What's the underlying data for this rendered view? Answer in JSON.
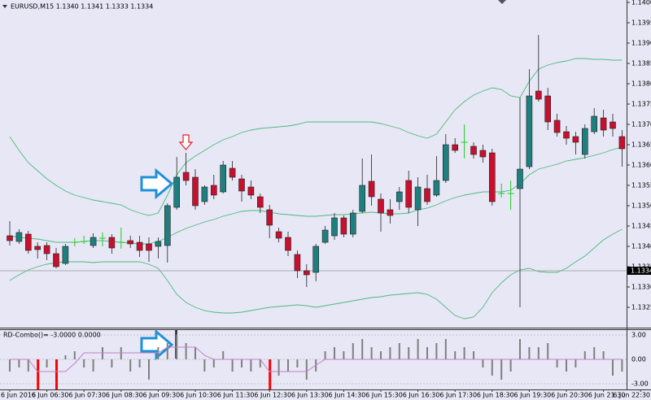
{
  "chart_data": [
    {
      "type": "candlestick",
      "title": "EURUSD,M15  1.1340 1.1341 1.1333 1.1334",
      "ylim": [
        1.132,
        1.14006
      ],
      "yticks": [
        {
          "value": 1.14,
          "label": "1.1400"
        },
        1.1395,
        {
          "value": 1.139,
          "label": "1.1390"
        },
        1.1385,
        {
          "value": 1.138,
          "label": "1.1380"
        },
        1.1375,
        {
          "value": 1.137,
          "label": "1.1370"
        },
        1.1365,
        {
          "value": 1.136,
          "label": "1.1360"
        },
        1.1355,
        {
          "value": 1.135,
          "label": "1.1350"
        },
        1.1345,
        {
          "value": 1.134,
          "label": "1.1340"
        },
        1.1335,
        {
          "value": 1.133,
          "label": "1.1330"
        },
        1.1325
      ],
      "last_price": 1.1334,
      "colors": {
        "up": "#1f7e7e",
        "down": "#c8102e",
        "doji": "#22cc22",
        "band": "#4cbb78",
        "last_price": "#9a9a9a"
      },
      "open": [
        1.13426,
        1.13412,
        1.1343,
        1.134,
        1.13402,
        1.13382,
        1.13358,
        1.1341,
        1.13412,
        1.13402,
        1.1342,
        1.13422,
        1.1341,
        1.13414,
        1.1341,
        1.13406,
        1.134,
        1.13402,
        1.13496,
        1.13582,
        1.1357,
        1.1351,
        1.1355,
        1.13534,
        1.13592,
        1.13566,
        1.13546,
        1.13522,
        1.1349,
        1.13436,
        1.13422,
        1.1338,
        1.1334,
        1.13336,
        1.1341,
        1.13426,
        1.1347,
        1.1343,
        1.13486,
        1.1356,
        1.13516,
        1.1349,
        1.1351,
        1.13562,
        1.1349,
        1.13542,
        1.13526,
        1.13562,
        1.1365,
        1.13656,
        1.13646,
        1.13636,
        1.1363,
        1.1353,
        1.1353,
        1.13542,
        1.13596,
        1.13782,
        1.1377,
        1.1371,
        1.13682,
        1.1367,
        1.13626,
        1.13682,
        1.13716,
        1.13706,
        1.1367,
        null,
        null
      ],
      "high": [
        1.13462,
        1.13442,
        1.13438,
        1.1341,
        1.1341,
        1.13396,
        1.13406,
        1.1342,
        1.13426,
        1.13432,
        1.13434,
        1.1343,
        1.13446,
        1.13426,
        1.13426,
        1.13422,
        1.13422,
        1.13506,
        1.1362,
        1.1363,
        1.1359,
        1.1355,
        1.13576,
        1.1361,
        1.1361,
        1.13576,
        1.13562,
        1.1353,
        1.13502,
        1.13446,
        1.13436,
        1.1339,
        1.13356,
        1.13406,
        1.1345,
        1.13482,
        1.13476,
        1.1349,
        1.13616,
        1.13626,
        1.1353,
        1.13516,
        1.13546,
        1.13586,
        1.1357,
        1.13576,
        1.13622,
        1.13676,
        1.13666,
        1.137,
        1.13656,
        1.1365,
        1.1364,
        1.13554,
        1.13562,
        1.13766,
        1.13836,
        1.1392,
        1.1379,
        1.13726,
        1.13696,
        1.13682,
        1.137,
        1.1374,
        1.13736,
        1.13726,
        1.13686,
        null,
        null
      ],
      "low": [
        1.13402,
        1.13406,
        1.13382,
        1.1337,
        1.13366,
        1.13346,
        1.13354,
        1.134,
        1.13406,
        1.13396,
        1.134,
        1.13382,
        1.13394,
        1.13396,
        1.13374,
        1.13362,
        1.1337,
        1.1336,
        1.1349,
        1.1355,
        1.1349,
        1.13502,
        1.13516,
        1.1353,
        1.13562,
        1.1351,
        1.13516,
        1.13482,
        1.1342,
        1.1341,
        1.13376,
        1.13322,
        1.133,
        1.13314,
        1.13406,
        1.13416,
        1.13422,
        1.13422,
        1.13482,
        1.135,
        1.13436,
        1.13456,
        1.1349,
        1.13482,
        1.1345,
        1.13502,
        1.13522,
        1.13556,
        1.1363,
        1.13616,
        1.13616,
        1.13606,
        1.135,
        1.1352,
        1.1349,
        1.1325,
        1.1359,
        1.13756,
        1.13686,
        1.1367,
        1.1365,
        1.13626,
        1.13616,
        1.13676,
        1.1367,
        1.1367,
        1.13596,
        null,
        null
      ],
      "close": [
        1.13414,
        1.13434,
        1.1339,
        1.13392,
        1.13382,
        1.1335,
        1.134,
        1.1341,
        1.13412,
        1.13422,
        1.1342,
        1.13396,
        1.1341,
        1.13406,
        1.1339,
        1.1339,
        1.13412,
        1.135,
        1.1357,
        1.13562,
        1.135,
        1.13546,
        1.13526,
        1.136,
        1.1357,
        1.13536,
        1.13526,
        1.13496,
        1.13452,
        1.1342,
        1.1339,
        1.1334,
        1.1333,
        1.134,
        1.1344,
        1.1347,
        1.1343,
        1.13482,
        1.1355,
        1.13522,
        1.13482,
        1.13476,
        1.13534,
        1.13496,
        1.13546,
        1.1351,
        1.13562,
        1.1365,
        1.13636,
        1.13656,
        1.13626,
        1.1362,
        1.1351,
        1.1353,
        1.1353,
        1.1359,
        1.1377,
        1.13762,
        1.13706,
        1.1368,
        1.13666,
        1.13656,
        1.1369,
        1.1372,
        1.13686,
        1.1369,
        1.1364,
        null,
        null
      ],
      "upper_band": [
        1.1367,
        1.13636,
        1.13606,
        1.13586,
        1.13566,
        1.1355,
        1.13536,
        1.13526,
        1.1352,
        1.13514,
        1.1351,
        1.13506,
        1.13502,
        1.1349,
        1.13482,
        1.13476,
        1.13482,
        1.13526,
        1.13576,
        1.13606,
        1.13622,
        1.13636,
        1.1365,
        1.13662,
        1.1367,
        1.1368,
        1.13686,
        1.1369,
        1.13692,
        1.13694,
        1.13696,
        1.137,
        1.13706,
        1.13706,
        1.13706,
        1.13706,
        1.13706,
        1.13706,
        1.13706,
        1.13706,
        1.13702,
        1.13696,
        1.1369,
        1.1368,
        1.13672,
        1.13666,
        1.13676,
        1.13706,
        1.13736,
        1.13756,
        1.13772,
        1.13782,
        1.1379,
        1.13786,
        1.1377,
        1.13766,
        1.13806,
        1.13836,
        1.13846,
        1.13852,
        1.13856,
        1.13862,
        1.13862,
        1.1386,
        1.1386,
        1.13858,
        1.13858,
        null,
        null
      ],
      "middle_band": [
        1.13426,
        1.13422,
        1.1342,
        1.13418,
        1.13414,
        1.1341,
        1.1341,
        1.1341,
        1.13412,
        1.13414,
        1.13414,
        1.13412,
        1.1341,
        1.13408,
        1.13406,
        1.13406,
        1.13412,
        1.13422,
        1.13434,
        1.13444,
        1.13452,
        1.1346,
        1.13466,
        1.13474,
        1.1348,
        1.13486,
        1.13488,
        1.13488,
        1.13484,
        1.1348,
        1.13478,
        1.13476,
        1.13474,
        1.13474,
        1.13476,
        1.13478,
        1.13478,
        1.1348,
        1.13482,
        1.13484,
        1.13482,
        1.1348,
        1.1348,
        1.13482,
        1.1349,
        1.13494,
        1.13502,
        1.13512,
        1.1352,
        1.13526,
        1.1353,
        1.13534,
        1.13534,
        1.13534,
        1.13538,
        1.13554,
        1.13576,
        1.1359,
        1.13596,
        1.13602,
        1.1361,
        1.13614,
        1.13618,
        1.13624,
        1.1363,
        1.13638,
        1.13644,
        null,
        null
      ],
      "lower_band": [
        1.13316,
        1.1333,
        1.13342,
        1.1335,
        1.13356,
        1.1336,
        1.13362,
        1.13362,
        1.13362,
        1.1336,
        1.13362,
        1.13362,
        1.13362,
        1.13362,
        1.13362,
        1.13356,
        1.13346,
        1.13316,
        1.13282,
        1.13262,
        1.1325,
        1.13242,
        1.13238,
        1.13236,
        1.13236,
        1.13238,
        1.13242,
        1.13246,
        1.1325,
        1.13252,
        1.13254,
        1.13256,
        1.13254,
        1.1325,
        1.13254,
        1.13258,
        1.13262,
        1.13266,
        1.1327,
        1.13274,
        1.13276,
        1.1328,
        1.13282,
        1.13284,
        1.13286,
        1.13282,
        1.1327,
        1.1325,
        1.1323,
        1.13222,
        1.13226,
        1.1325,
        1.13286,
        1.1331,
        1.1333,
        1.13342,
        1.13346,
        1.13338,
        1.13336,
        1.13336,
        1.13346,
        1.13362,
        1.13376,
        1.13396,
        1.13416,
        1.1343,
        1.13442,
        null,
        null
      ]
    },
    {
      "type": "bar",
      "title": "RD-Combo()= -3.0000 0.0000",
      "ylim": [
        -3.7,
        3.6
      ],
      "yticks": [
        {
          "value": 3,
          "label": "3.00"
        },
        {
          "value": 0,
          "label": "0.00"
        },
        {
          "value": -3,
          "label": "-3.00"
        }
      ],
      "categories": [
        "6 Jun 2016",
        null,
        null,
        null,
        "6 Jun 06:30",
        null,
        null,
        null,
        "6 Jun 07:30",
        null,
        null,
        null,
        "6 Jun 08:30",
        null,
        null,
        null,
        "6 Jun 09:30",
        null,
        null,
        null,
        "6 Jun 10:30",
        null,
        null,
        null,
        "6 Jun 11:30",
        null,
        null,
        null,
        "6 Jun 12:30",
        null,
        null,
        null,
        "6 Jun 13:30",
        null,
        null,
        null,
        "6 Jun 14:30",
        null,
        null,
        null,
        "6 Jun 15:30",
        null,
        null,
        null,
        "6 Jun 16:30",
        null,
        null,
        null,
        "6 Jun 17:30",
        null,
        null,
        null,
        "6 Jun 18:30",
        null,
        null,
        null,
        "6 Jun 19:30",
        null,
        null,
        null,
        "6 Jun 20:30",
        null,
        null,
        null,
        "6 Jun 21:30",
        null,
        null,
        null,
        "6 Jun 22:30"
      ],
      "series": [
        {
          "color": "#7f7f7f",
          "values": [
            -1.5,
            -1,
            -1.5,
            null,
            -1,
            null,
            0.5,
            1,
            -1,
            -1.5,
            1.5,
            -1,
            1.5,
            -1.5,
            -1,
            -2.5,
            1.5,
            2,
            3,
            2,
            1.5,
            -1.5,
            -1,
            1,
            -1.5,
            -1,
            -1.5,
            -1,
            null,
            -2,
            -1.5,
            -1,
            -2.5,
            -1.5,
            1,
            1.5,
            1,
            2,
            2.5,
            1.5,
            1,
            1.5,
            2,
            1.5,
            2.5,
            1.5,
            2,
            2.5,
            1,
            1.5,
            1,
            -1,
            -2,
            -2.5,
            -1.5,
            2.5,
            1.5,
            1.5,
            2,
            -1,
            -1.5,
            -1,
            1,
            1.5,
            1,
            -2,
            -1.5,
            null,
            null
          ]
        },
        {
          "color": "#ff0000",
          "values": [
            null,
            null,
            null,
            -3.7,
            null,
            -3.7,
            null,
            null,
            null,
            null,
            null,
            null,
            null,
            null,
            null,
            null,
            null,
            null,
            null,
            null,
            null,
            null,
            null,
            null,
            null,
            null,
            null,
            null,
            -3.7,
            null,
            null,
            null,
            null,
            null,
            null,
            null,
            null,
            null,
            null,
            null,
            null,
            null,
            null,
            null,
            null,
            null,
            null,
            null,
            null,
            null,
            null,
            null,
            null,
            null,
            null,
            null,
            null,
            null,
            null,
            null,
            null,
            null,
            null,
            null,
            null,
            null,
            null,
            null,
            null
          ]
        }
      ],
      "signal": {
        "color": "#c37fc7",
        "values": [
          0,
          0,
          0,
          -1.5,
          -1.5,
          -1.5,
          -1.5,
          -0.5,
          0.8,
          0.8,
          0.8,
          0.8,
          0.8,
          0.8,
          0.8,
          0.8,
          0.8,
          1.5,
          1.5,
          1.5,
          1.5,
          0.5,
          0,
          0,
          0,
          0,
          0,
          0,
          -1.5,
          -1.5,
          -1.5,
          -1.5,
          -1.5,
          -0.7,
          0,
          0,
          0,
          0,
          0,
          0,
          0,
          0,
          0,
          0,
          0,
          0,
          0,
          0,
          0,
          0,
          0,
          0,
          0,
          0,
          0,
          0,
          0,
          0,
          0,
          0,
          0,
          0,
          0,
          0,
          0,
          0,
          0,
          null,
          null
        ]
      }
    }
  ]
}
